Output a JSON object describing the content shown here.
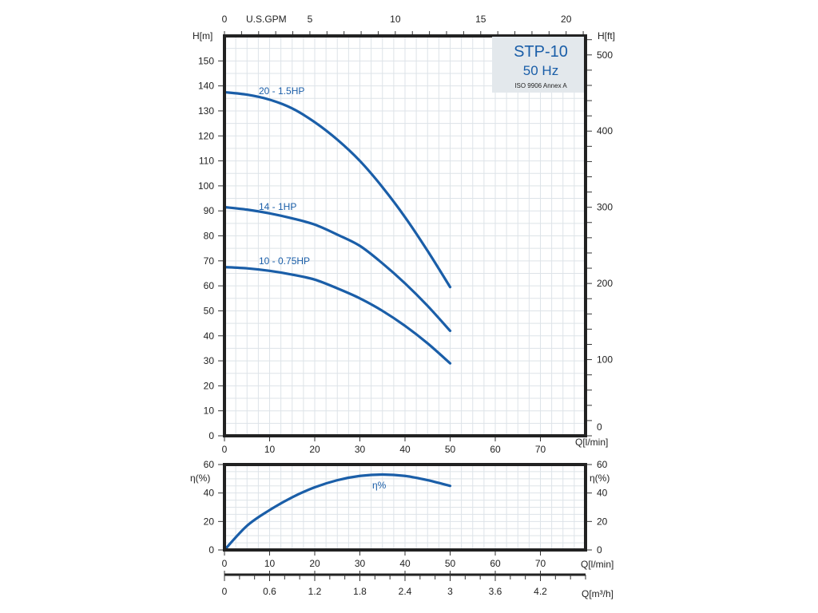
{
  "chart_data": [
    {
      "type": "line",
      "title_box": {
        "model": "STP-10",
        "frequency": "50 Hz",
        "standard": "ISO 9906 Annex A"
      },
      "xlabel": "Q[l/min]",
      "ylabel": "H[m]",
      "ylabel_right": "H[ft]",
      "xlabel_top": "U.S.GPM",
      "xlim": [
        0,
        80
      ],
      "ylim": [
        0,
        160
      ],
      "x_ticks": [
        0,
        10,
        20,
        30,
        40,
        50,
        60,
        70
      ],
      "y_ticks": [
        0,
        10,
        20,
        30,
        40,
        50,
        60,
        70,
        80,
        90,
        100,
        110,
        120,
        130,
        140,
        150
      ],
      "y_right_ticks": [
        0,
        100,
        200,
        300,
        400,
        500
      ],
      "x_top_ticks": [
        0,
        5,
        10,
        15,
        20
      ],
      "grid": true,
      "color": "#1a5ea8",
      "series": [
        {
          "name": "20 - 1.5HP",
          "x": [
            0,
            5,
            10,
            15,
            20,
            25,
            30,
            35,
            40,
            45,
            50
          ],
          "y": [
            137.5,
            136.5,
            134.5,
            131,
            125.5,
            118.5,
            110,
            99.5,
            87.5,
            74,
            59.5
          ]
        },
        {
          "name": "14 - 1HP",
          "x": [
            0,
            5,
            10,
            15,
            20,
            25,
            30,
            35,
            40,
            45,
            50
          ],
          "y": [
            91.5,
            90.5,
            89,
            87,
            84.5,
            80.5,
            76,
            69,
            61,
            52,
            42
          ]
        },
        {
          "name": "10 - 0.75HP",
          "x": [
            0,
            5,
            10,
            15,
            20,
            25,
            30,
            35,
            40,
            45,
            50
          ],
          "y": [
            67.5,
            67,
            66,
            64.5,
            62.5,
            59,
            55,
            50,
            44,
            37,
            29
          ]
        }
      ]
    },
    {
      "type": "line",
      "xlabel": "Q[l/min]",
      "ylabel": "η(%)",
      "ylabel_right": "η(%)",
      "xlabel_bottom2": "Q[m³/h]",
      "xlim": [
        0,
        80
      ],
      "ylim": [
        0,
        60
      ],
      "x_ticks": [
        0,
        10,
        20,
        30,
        40,
        50,
        60,
        70
      ],
      "y_ticks": [
        0,
        20,
        40,
        60
      ],
      "x2_ticks": [
        "0",
        "0.6",
        "1.2",
        "1.8",
        "2.4",
        "3",
        "3.6",
        "4.2"
      ],
      "grid": true,
      "series": [
        {
          "name": "η%",
          "x": [
            0,
            5,
            10,
            15,
            20,
            25,
            30,
            35,
            40,
            45,
            50
          ],
          "y": [
            0,
            17,
            28,
            37,
            44,
            49,
            52,
            53,
            52,
            49,
            45
          ]
        }
      ]
    }
  ]
}
